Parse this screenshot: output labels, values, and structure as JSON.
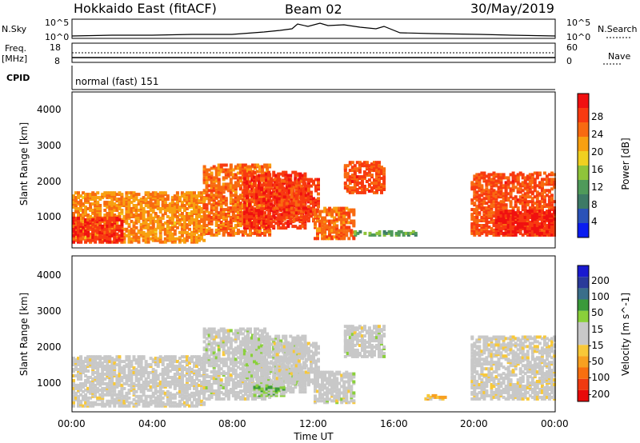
{
  "header": {
    "station": "Hokkaido East (fitACF)",
    "beam": "Beam 02",
    "date": "30/May/2019"
  },
  "noise_panel": {
    "left_label": "N.Sky",
    "right_label": "N.Search",
    "left_ticks": [
      "10^5",
      "10^0"
    ],
    "right_ticks": [
      "10^5",
      "10^0"
    ]
  },
  "freq_panel": {
    "left_label_line1": "Freq.",
    "left_label_line2": "[MHz]",
    "left_ticks": [
      "18",
      "8"
    ],
    "right_label": "Nave",
    "right_ticks": [
      "60",
      "0"
    ]
  },
  "cpid_panel": {
    "label": "CPID",
    "mode_text": "normal (fast) 151"
  },
  "x_axis": {
    "ticks": [
      "00:00",
      "04:00",
      "08:00",
      "12:00",
      "16:00",
      "20:00",
      "00:00"
    ],
    "label": "Time UT"
  },
  "y_axis": {
    "label": "Slant Range [km]",
    "ticks": [
      "1000",
      "2000",
      "3000",
      "4000"
    ]
  },
  "colors": {
    "power_scale": [
      "#0a1cf0",
      "#2a52b8",
      "#3d7a66",
      "#4f9a5a",
      "#8fc43a",
      "#f0d020",
      "#f8a010",
      "#f86a10",
      "#f83a10",
      "#f01010"
    ],
    "velocity_scale": [
      "#e80a0a",
      "#f03a10",
      "#f86f10",
      "#f8a020",
      "#f8c838",
      "#c8c8c8",
      "#c8c8c8",
      "#8ad03a",
      "#3a9a3a",
      "#3a6e8a",
      "#2a3a9a",
      "#1a1ad0"
    ]
  },
  "chart_data": [
    {
      "type": "heatmap",
      "title": "Power",
      "x": [
        "00:00",
        "04:00",
        "08:00",
        "12:00",
        "16:00",
        "20:00",
        "00:00"
      ],
      "xlabel": "Time UT",
      "ylabel": "Slant Range [km]",
      "ylim": [
        180,
        4600
      ],
      "colorbar": {
        "label": "Power [dB]",
        "ticks": [
          "28",
          "24",
          "20",
          "16",
          "12",
          "8",
          "4"
        ],
        "range": [
          0,
          32
        ]
      },
      "regions": [
        {
          "t0": 0.0,
          "t1": 6.6,
          "r0": 300,
          "r1": 1700,
          "level": 22
        },
        {
          "t0": 0.0,
          "t1": 2.5,
          "r0": 300,
          "r1": 1000,
          "level": 28
        },
        {
          "t0": 6.5,
          "t1": 9.8,
          "r0": 500,
          "r1": 2500,
          "level": 24
        },
        {
          "t0": 8.5,
          "t1": 11.5,
          "r0": 700,
          "r1": 2300,
          "level": 28
        },
        {
          "t0": 10.0,
          "t1": 12.2,
          "r0": 900,
          "r1": 2100,
          "level": 27
        },
        {
          "t0": 12.0,
          "t1": 14.0,
          "r0": 400,
          "r1": 1300,
          "level": 24
        },
        {
          "t0": 13.5,
          "t1": 15.5,
          "r0": 1700,
          "r1": 2600,
          "level": 26
        },
        {
          "t0": 14.0,
          "t1": 17.0,
          "r0": 500,
          "r1": 600,
          "level": 12
        },
        {
          "t0": 19.8,
          "t1": 24.0,
          "r0": 500,
          "r1": 2300,
          "level": 26
        },
        {
          "t0": 21.0,
          "t1": 24.0,
          "r0": 500,
          "r1": 1200,
          "level": 29
        }
      ]
    },
    {
      "type": "heatmap",
      "title": "Velocity",
      "x": [
        "00:00",
        "04:00",
        "08:00",
        "12:00",
        "16:00",
        "20:00",
        "00:00"
      ],
      "xlabel": "Time UT",
      "ylabel": "Slant Range [km]",
      "ylim": [
        180,
        4600
      ],
      "colorbar": {
        "label": "Velocity [m s^-1]",
        "ticks": [
          "200",
          "100",
          "50",
          "15",
          "-15",
          "-50",
          "-100",
          "-200"
        ],
        "range": [
          -250,
          250
        ]
      },
      "regions": [
        {
          "t0": 0.0,
          "t1": 6.6,
          "r0": 300,
          "r1": 1700,
          "level": -5
        },
        {
          "t0": 6.5,
          "t1": 9.8,
          "r0": 500,
          "r1": 2500,
          "level": 0
        },
        {
          "t0": 8.5,
          "t1": 11.5,
          "r0": 700,
          "r1": 2300,
          "level": 5
        },
        {
          "t0": 9.0,
          "t1": 10.5,
          "r0": 600,
          "r1": 900,
          "level": 60
        },
        {
          "t0": 10.0,
          "t1": 12.2,
          "r0": 900,
          "r1": 2100,
          "level": -5
        },
        {
          "t0": 12.0,
          "t1": 14.0,
          "r0": 400,
          "r1": 1300,
          "level": 0
        },
        {
          "t0": 13.5,
          "t1": 15.5,
          "r0": 1700,
          "r1": 2600,
          "level": 0
        },
        {
          "t0": 17.5,
          "t1": 18.5,
          "r0": 500,
          "r1": 600,
          "level": -70
        },
        {
          "t0": 19.8,
          "t1": 24.0,
          "r0": 500,
          "r1": 2300,
          "level": -10
        }
      ]
    }
  ]
}
